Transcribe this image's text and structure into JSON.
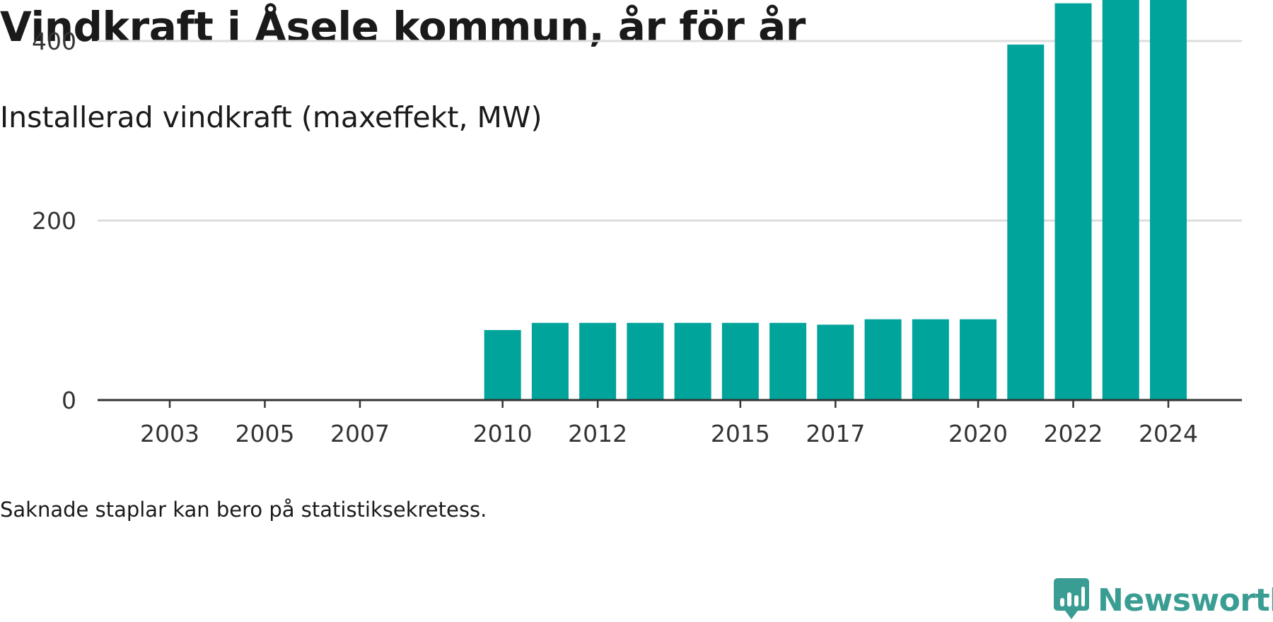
{
  "header": {
    "title": "Vindkraft i Åsele kommun, år för år",
    "subtitle": "Installerad vindkraft (maxeffekt, MW)"
  },
  "footer": {
    "note": "Saknade staplar kan bero på statistiksekretess.",
    "brand": "Newsworthy"
  },
  "colors": {
    "bar": "#00a49a",
    "gridline": "#dddddd",
    "axis": "#333333",
    "brand": "#3a9d94"
  },
  "chart_data": {
    "type": "bar",
    "title": "Vindkraft i Åsele kommun, år för år",
    "subtitle": "Installerad vindkraft (maxeffekt, MW)",
    "xlabel": "",
    "ylabel": "",
    "ylim": [
      0,
      400
    ],
    "y_ticks": [
      0,
      200,
      400
    ],
    "x_range": [
      2002,
      2025
    ],
    "x_ticks": [
      2003,
      2005,
      2007,
      2010,
      2012,
      2015,
      2017,
      2020,
      2022,
      2024
    ],
    "grid": true,
    "legend": "none",
    "categories": [
      2010,
      2011,
      2012,
      2013,
      2014,
      2015,
      2016,
      2017,
      2018,
      2019,
      2020,
      2021,
      2022,
      2023,
      2024
    ],
    "values": [
      78,
      86,
      86,
      86,
      86,
      86,
      86,
      84,
      90,
      90,
      90,
      396,
      442,
      447,
      447
    ]
  }
}
